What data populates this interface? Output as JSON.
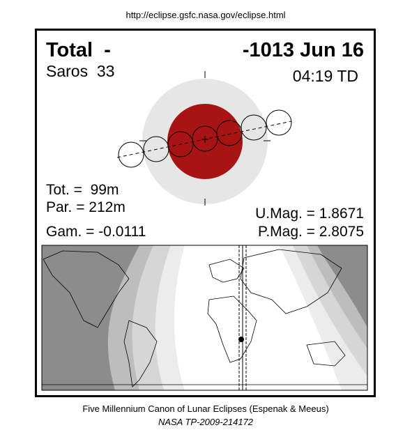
{
  "header": {
    "url": "http://eclipse.gsfc.nasa.gov/eclipse.html"
  },
  "eclipse": {
    "type": "Total  -",
    "date": "-1013 Jun 16",
    "saros": "Saros  33",
    "time": "04:19 TD",
    "tot": "Tot. =  99m",
    "par": "Par. = 212m",
    "gam": "Gam. = -0.0111",
    "umag": "U.Mag. = 1.8671",
    "pmag": "P.Mag. = 2.8075"
  },
  "footer": {
    "line1": "Five Millennium Canon of Lunar Eclipses (Espenak & Meeus)",
    "line2": "NASA TP-2009-214172"
  }
}
